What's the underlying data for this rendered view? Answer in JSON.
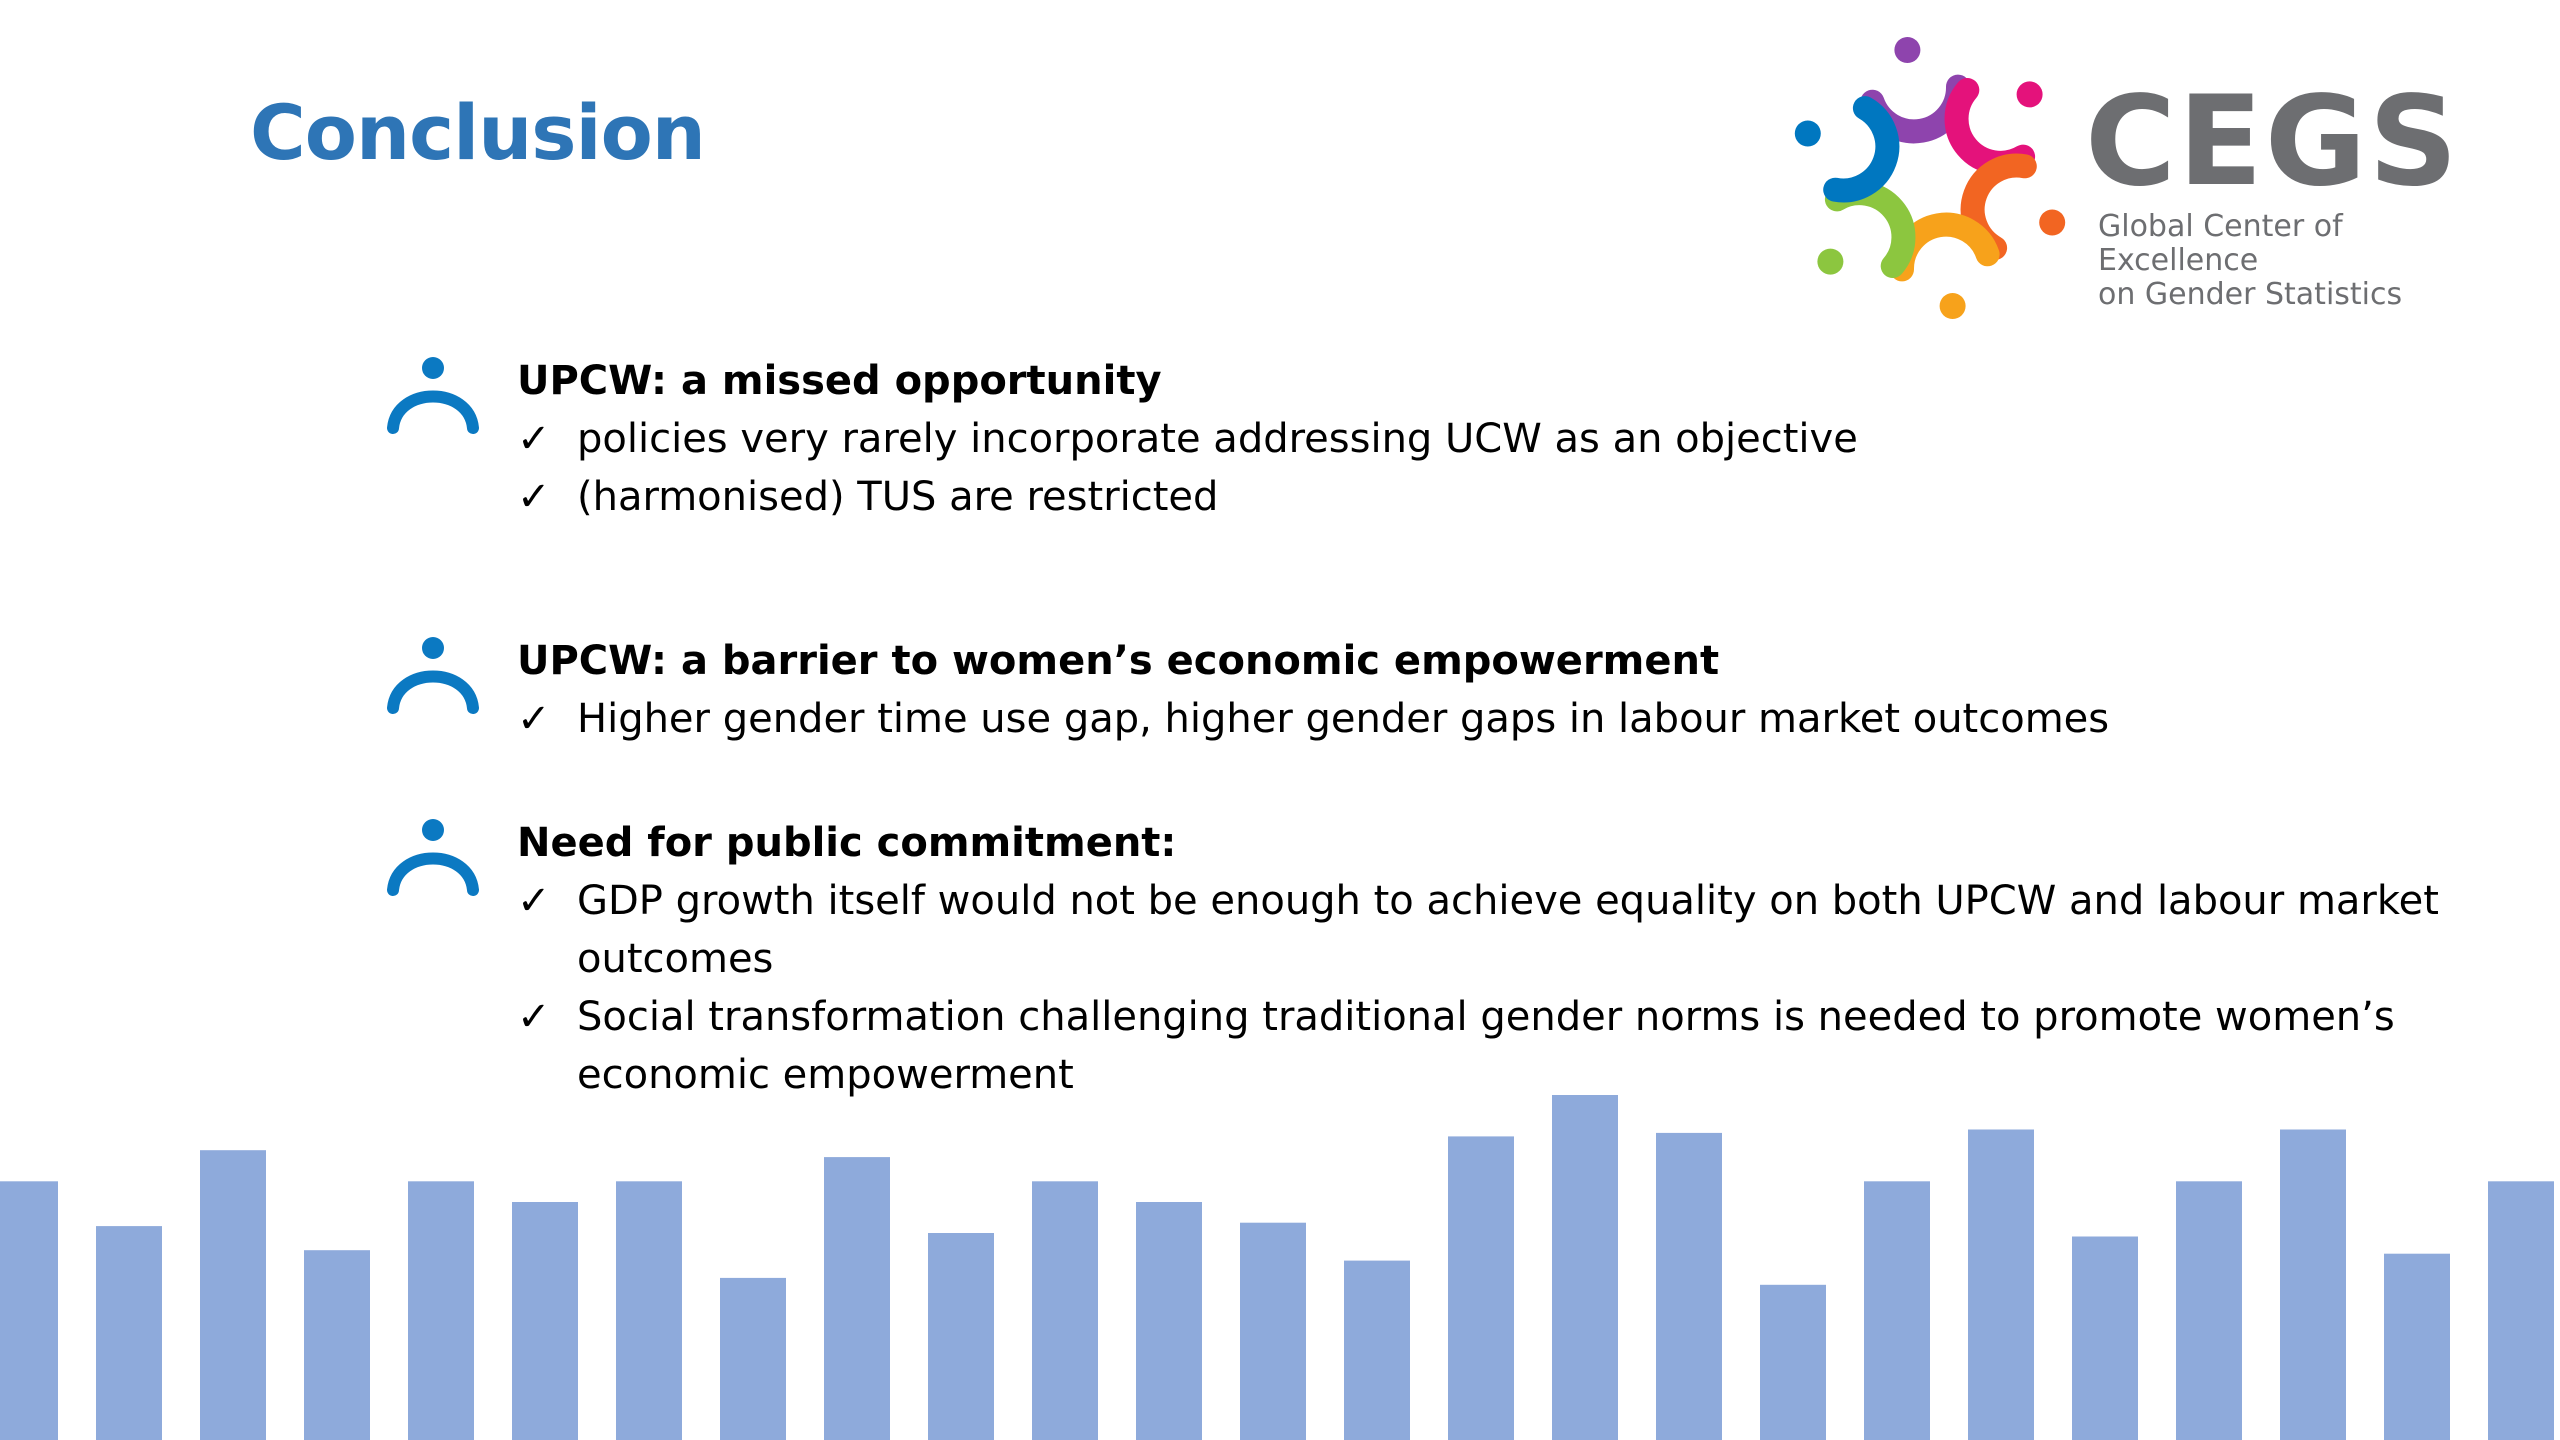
{
  "slide": {
    "title": "Conclusion"
  },
  "logo": {
    "wordmark": "CEGS",
    "tagline_line1": "Global Center of Excellence",
    "tagline_line2": "on Gender Statistics",
    "ring_colors": [
      "#8e44ad",
      "#e4127b",
      "#f26522",
      "#f7a21b",
      "#8cc63f",
      "#0077c0"
    ]
  },
  "sections": [
    {
      "heading": "UPCW: a missed opportunity",
      "bullets": [
        "policies very rarely incorporate addressing UCW as an objective",
        "(harmonised) TUS are restricted"
      ]
    },
    {
      "heading": "UPCW: a barrier to women’s economic empowerment",
      "bullets": [
        "Higher gender time use gap, higher gender gaps in labour market outcomes"
      ]
    },
    {
      "heading": "Need for public commitment:",
      "bullets": [
        "GDP growth itself would not be enough to achieve equality on both UPCW and labour market outcomes",
        "Social transformation challenging traditional gender norms is needed to promote women’s economic empowerment"
      ]
    }
  ],
  "icons": {
    "section_icon": "person-icon",
    "bullet_icon": "checkmark-icon",
    "check_glyph": "✓",
    "accent_color": "#0b79c2"
  },
  "decoration": {
    "bar_color": "#8eaadb",
    "bar_levels": [
      0.75,
      0.62,
      0.84,
      0.55,
      0.75,
      0.69,
      0.75,
      0.47,
      0.82,
      0.6,
      0.75,
      0.69,
      0.63,
      0.52,
      0.88,
      1.0,
      0.89,
      0.45,
      0.75,
      0.9,
      0.59,
      0.75,
      0.9,
      0.54,
      0.75
    ]
  }
}
